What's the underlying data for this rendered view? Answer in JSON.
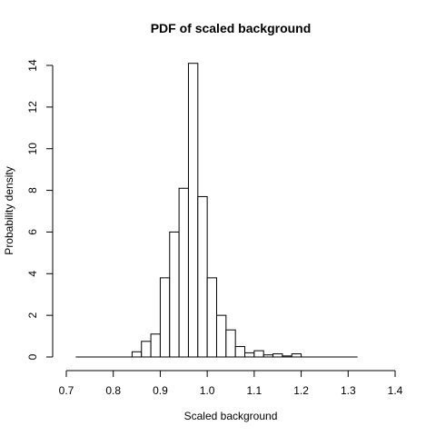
{
  "chart_data": {
    "type": "bar",
    "title": "PDF of scaled background",
    "xlabel": "Scaled background",
    "ylabel": "Probability density",
    "xlim": [
      0.7,
      1.4
    ],
    "ylim": [
      0,
      14
    ],
    "xticks": [
      "0.7",
      "0.8",
      "0.9",
      "1.0",
      "1.1",
      "1.2",
      "1.3",
      "1.4"
    ],
    "yticks": [
      "0",
      "2",
      "4",
      "6",
      "8",
      "10",
      "12",
      "14"
    ],
    "grid": false,
    "bin_width": 0.02,
    "bins": [
      {
        "x0": 0.72,
        "value": 0
      },
      {
        "x0": 0.74,
        "value": 0
      },
      {
        "x0": 0.76,
        "value": 0
      },
      {
        "x0": 0.78,
        "value": 0
      },
      {
        "x0": 0.8,
        "value": 0
      },
      {
        "x0": 0.82,
        "value": 0
      },
      {
        "x0": 0.84,
        "value": 0.25
      },
      {
        "x0": 0.86,
        "value": 0.75
      },
      {
        "x0": 0.88,
        "value": 1.1
      },
      {
        "x0": 0.9,
        "value": 3.8
      },
      {
        "x0": 0.92,
        "value": 6.0
      },
      {
        "x0": 0.94,
        "value": 8.1
      },
      {
        "x0": 0.96,
        "value": 14.1
      },
      {
        "x0": 0.98,
        "value": 7.7
      },
      {
        "x0": 1.0,
        "value": 3.8
      },
      {
        "x0": 1.02,
        "value": 2.0
      },
      {
        "x0": 1.04,
        "value": 1.3
      },
      {
        "x0": 1.06,
        "value": 0.5
      },
      {
        "x0": 1.08,
        "value": 0.2
      },
      {
        "x0": 1.1,
        "value": 0.3
      },
      {
        "x0": 1.12,
        "value": 0.1
      },
      {
        "x0": 1.14,
        "value": 0.15
      },
      {
        "x0": 1.16,
        "value": 0.05
      },
      {
        "x0": 1.18,
        "value": 0.15
      },
      {
        "x0": 1.2,
        "value": 0
      },
      {
        "x0": 1.22,
        "value": 0
      },
      {
        "x0": 1.24,
        "value": 0
      },
      {
        "x0": 1.26,
        "value": 0
      },
      {
        "x0": 1.28,
        "value": 0
      },
      {
        "x0": 1.3,
        "value": 0
      }
    ]
  }
}
